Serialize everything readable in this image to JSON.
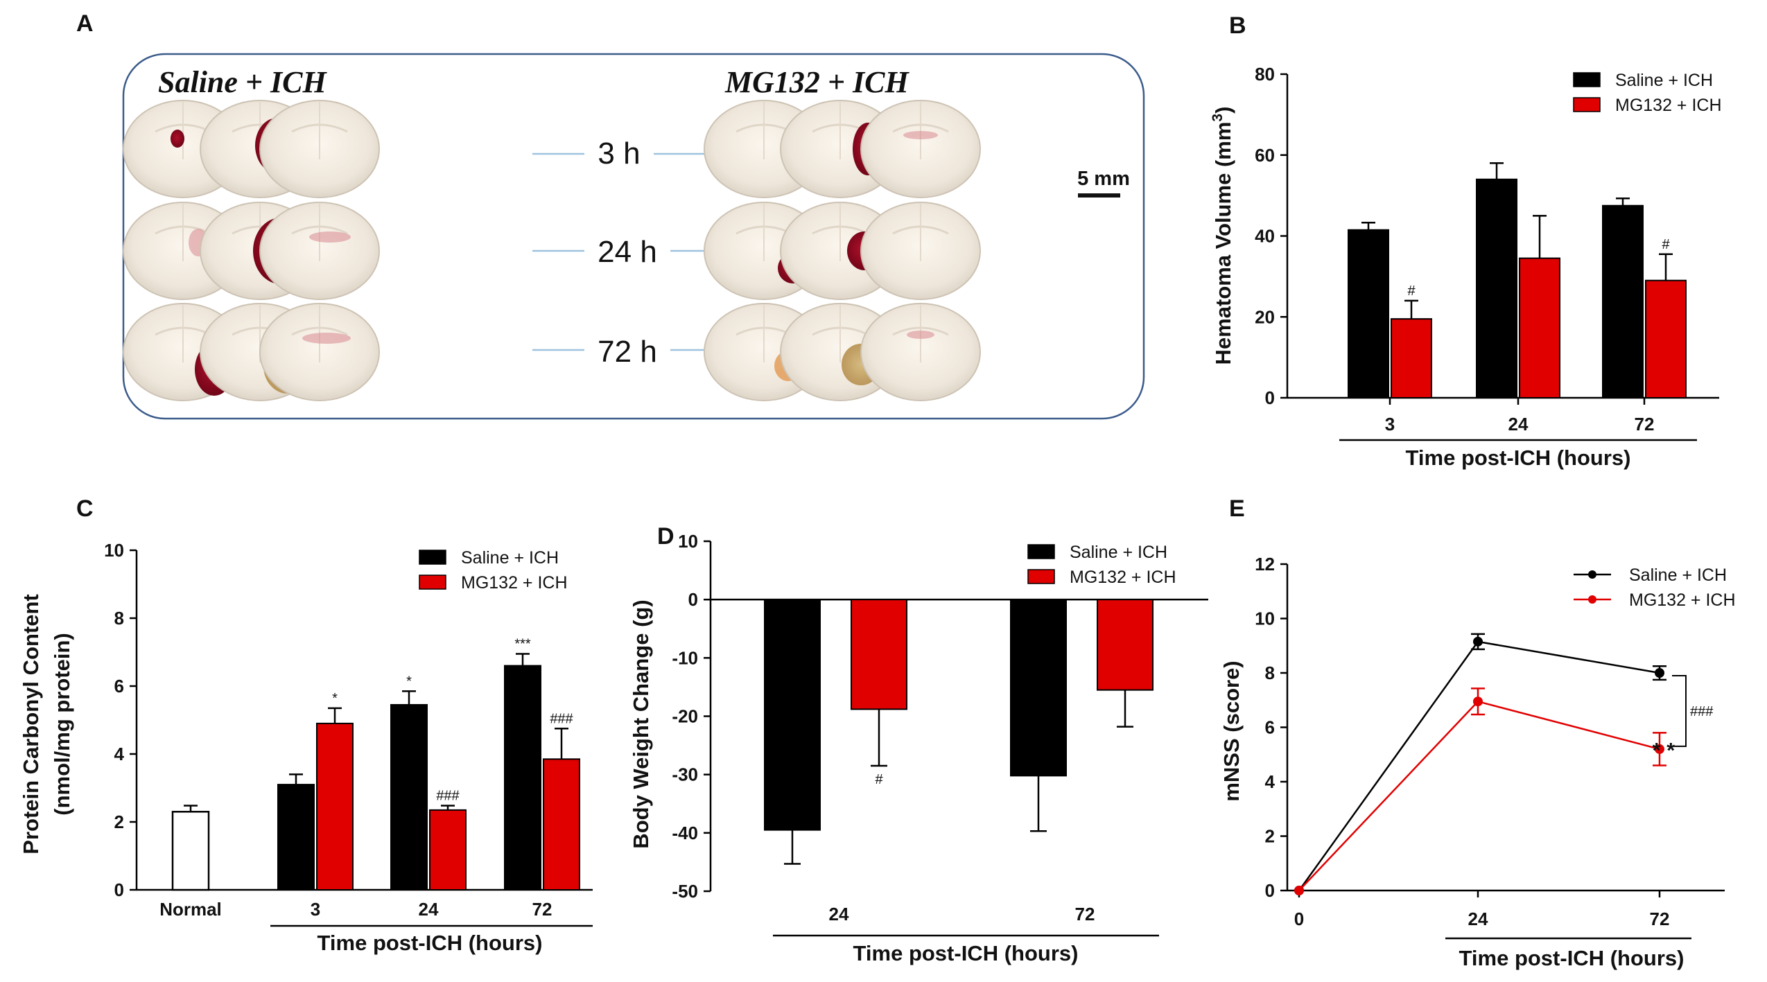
{
  "panels": {
    "a": "A",
    "b": "B",
    "c": "C",
    "d": "D",
    "e": "E"
  },
  "photo_panel": {
    "saline_title": "Saline + ICH",
    "mg132_title": "MG132 + ICH",
    "time_labels": [
      "3 h",
      "24 h",
      "72 h"
    ],
    "scale_bar": "5 mm"
  },
  "colors": {
    "saline": "#000000",
    "mg132": "#e10000",
    "normal": "#ffffff",
    "frame": "#3b5b8a",
    "connector": "#9ec3de"
  },
  "chart_data": [
    {
      "id": "B",
      "type": "bar",
      "categories": [
        "3",
        "24",
        "72"
      ],
      "series": [
        {
          "name": "Saline + ICH",
          "values": [
            41.5,
            54,
            47.5
          ],
          "errors": [
            1.8,
            4,
            1.8
          ]
        },
        {
          "name": "MG132 + ICH",
          "values": [
            19.5,
            34.5,
            29
          ],
          "errors": [
            4.5,
            10.5,
            6.5
          ]
        }
      ],
      "annotations": [
        {
          "series": 1,
          "index": 0,
          "text": "#"
        },
        {
          "series": 1,
          "index": 2,
          "text": "#"
        }
      ],
      "ylabel": "Hematoma Volume (mm",
      "ylabel_sup": "3",
      "ylabel_end": ")",
      "xlabel": "Time post-ICH (hours)",
      "ylim": [
        0,
        80
      ],
      "yticks": [
        "0",
        "20",
        "40",
        "60",
        "80"
      ],
      "legend": [
        "Saline + ICH",
        "MG132 + ICH"
      ]
    },
    {
      "id": "C",
      "type": "bar",
      "normal": {
        "label": "Normal",
        "value": 2.3,
        "error": 0.18
      },
      "categories": [
        "3",
        "24",
        "72"
      ],
      "series": [
        {
          "name": "Saline + ICH",
          "values": [
            3.1,
            5.45,
            6.6
          ],
          "errors": [
            0.3,
            0.4,
            0.35
          ]
        },
        {
          "name": "MG132 + ICH",
          "values": [
            4.9,
            2.35,
            3.85
          ],
          "errors": [
            0.45,
            0.13,
            0.9
          ]
        }
      ],
      "annotations": [
        {
          "series": 1,
          "index": 0,
          "text": "*"
        },
        {
          "series": 0,
          "index": 1,
          "text": "*"
        },
        {
          "series": 1,
          "index": 1,
          "text": "###"
        },
        {
          "series": 0,
          "index": 2,
          "text": "***"
        },
        {
          "series": 1,
          "index": 2,
          "text": "###"
        }
      ],
      "ylabel_line1": "Protein Carbonyl Content",
      "ylabel_line2": "(nmol/mg protein)",
      "xlabel": "Time post-ICH (hours)",
      "ylim": [
        0,
        10
      ],
      "yticks": [
        "0",
        "2",
        "4",
        "6",
        "8",
        "10"
      ],
      "legend": [
        "Saline + ICH",
        "MG132 + ICH"
      ]
    },
    {
      "id": "D",
      "type": "bar",
      "categories": [
        "24",
        "72"
      ],
      "series": [
        {
          "name": "Saline + ICH",
          "values": [
            -39.5,
            -30.2
          ],
          "errors": [
            5.8,
            9.5
          ]
        },
        {
          "name": "MG132 + ICH",
          "values": [
            -18.8,
            -15.5
          ],
          "errors": [
            9.7,
            6.3
          ]
        }
      ],
      "annotations": [
        {
          "series": 1,
          "index": 0,
          "text": "#"
        }
      ],
      "ylabel": "Body Weight Change (g)",
      "xlabel": "Time post-ICH (hours)",
      "ylim": [
        -50,
        10
      ],
      "yticks": [
        "-50",
        "-40",
        "-30",
        "-20",
        "-10",
        "0",
        "10"
      ],
      "legend": [
        "Saline + ICH",
        "MG132 + ICH"
      ]
    },
    {
      "id": "E",
      "type": "line",
      "x": [
        0,
        24,
        72
      ],
      "xticks": [
        "0",
        "24",
        "72"
      ],
      "series": [
        {
          "name": "Saline + ICH",
          "values": [
            0,
            9.15,
            8.0
          ],
          "errors": [
            0,
            0.28,
            0.25
          ]
        },
        {
          "name": "MG132 + ICH",
          "values": [
            0,
            6.95,
            5.2
          ],
          "errors": [
            0,
            0.48,
            0.6
          ]
        }
      ],
      "annotations": [
        {
          "text": "###"
        },
        {
          "text": "* *"
        }
      ],
      "ylabel": "mNSS (score)",
      "xlabel": "Time post-ICH (hours)",
      "ylim": [
        0,
        12
      ],
      "yticks": [
        "0",
        "2",
        "4",
        "6",
        "8",
        "10",
        "12"
      ],
      "legend": [
        "Saline + ICH",
        "MG132 + ICH"
      ]
    }
  ]
}
